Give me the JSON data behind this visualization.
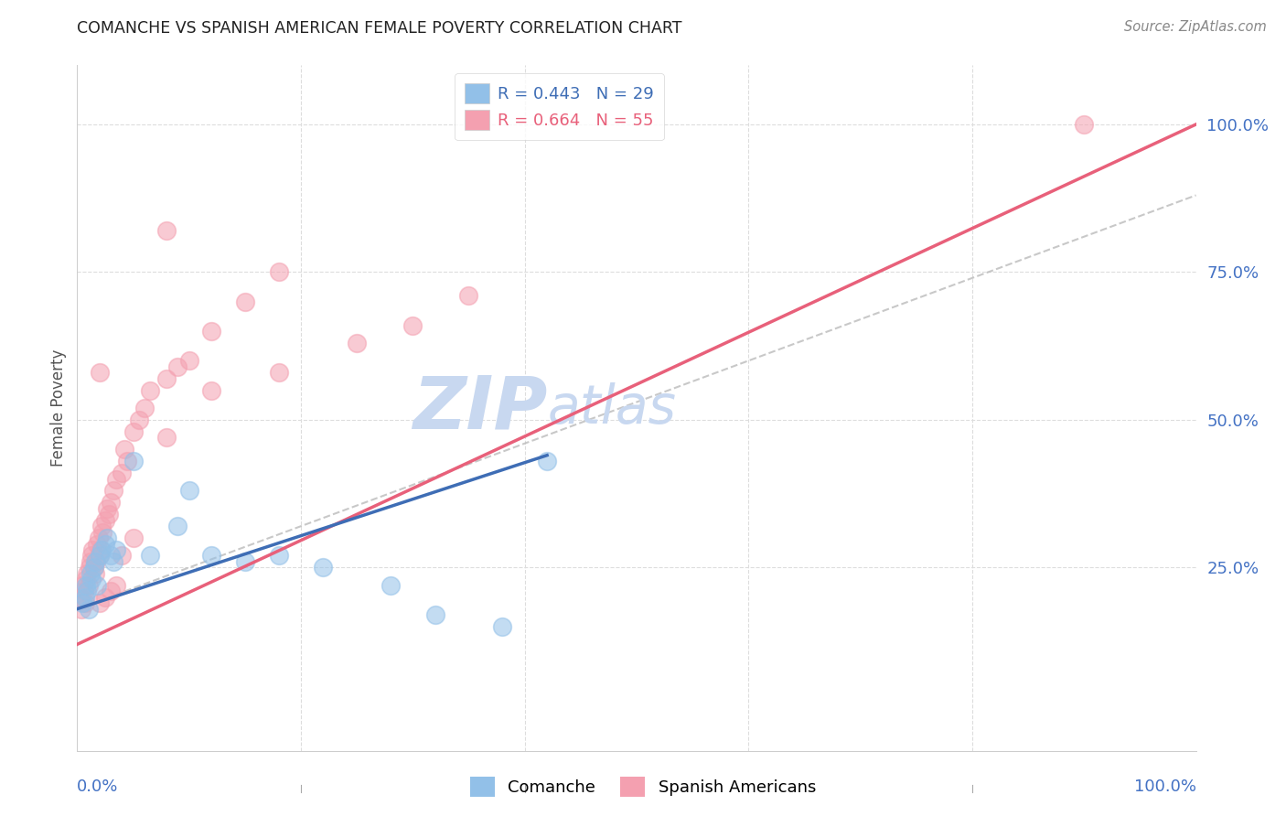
{
  "title": "COMANCHE VS SPANISH AMERICAN FEMALE POVERTY CORRELATION CHART",
  "source": "Source: ZipAtlas.com",
  "ylabel": "Female Poverty",
  "right_yticks": [
    "100.0%",
    "75.0%",
    "50.0%",
    "25.0%"
  ],
  "right_ytick_vals": [
    1.0,
    0.75,
    0.5,
    0.25
  ],
  "legend_line1": "R = 0.443   N = 29",
  "legend_line2": "R = 0.664   N = 55",
  "comanche_color": "#92C0E8",
  "spanish_color": "#F4A0B0",
  "comanche_line_color": "#3E6DB5",
  "spanish_line_color": "#E8607A",
  "dashed_line_color": "#BBBBBB",
  "watermark_zip": "ZIP",
  "watermark_atlas": "atlas",
  "watermark_color": "#C8D8F0",
  "grid_color": "#DDDDDD",
  "comanche_x": [
    0.005,
    0.007,
    0.008,
    0.009,
    0.01,
    0.012,
    0.013,
    0.015,
    0.016,
    0.018,
    0.02,
    0.022,
    0.025,
    0.027,
    0.03,
    0.032,
    0.035,
    0.05,
    0.065,
    0.09,
    0.1,
    0.12,
    0.15,
    0.18,
    0.22,
    0.28,
    0.32,
    0.38,
    0.42
  ],
  "comanche_y": [
    0.19,
    0.2,
    0.22,
    0.21,
    0.18,
    0.24,
    0.23,
    0.25,
    0.26,
    0.22,
    0.27,
    0.28,
    0.29,
    0.3,
    0.27,
    0.26,
    0.28,
    0.43,
    0.27,
    0.32,
    0.38,
    0.27,
    0.26,
    0.27,
    0.25,
    0.22,
    0.17,
    0.15,
    0.43
  ],
  "spanish_x": [
    0.003,
    0.004,
    0.005,
    0.006,
    0.007,
    0.008,
    0.009,
    0.01,
    0.011,
    0.012,
    0.013,
    0.014,
    0.015,
    0.016,
    0.017,
    0.018,
    0.019,
    0.02,
    0.021,
    0.022,
    0.023,
    0.025,
    0.027,
    0.028,
    0.03,
    0.032,
    0.035,
    0.04,
    0.042,
    0.045,
    0.05,
    0.055,
    0.06,
    0.065,
    0.08,
    0.09,
    0.1,
    0.12,
    0.15,
    0.18,
    0.02,
    0.025,
    0.03,
    0.035,
    0.04,
    0.05,
    0.08,
    0.12,
    0.18,
    0.25,
    0.3,
    0.35,
    0.9,
    0.08,
    0.02
  ],
  "spanish_y": [
    0.2,
    0.18,
    0.22,
    0.21,
    0.19,
    0.23,
    0.24,
    0.22,
    0.25,
    0.26,
    0.27,
    0.28,
    0.25,
    0.24,
    0.26,
    0.29,
    0.3,
    0.27,
    0.28,
    0.32,
    0.31,
    0.33,
    0.35,
    0.34,
    0.36,
    0.38,
    0.4,
    0.41,
    0.45,
    0.43,
    0.48,
    0.5,
    0.52,
    0.55,
    0.57,
    0.59,
    0.6,
    0.65,
    0.7,
    0.75,
    0.19,
    0.2,
    0.21,
    0.22,
    0.27,
    0.3,
    0.47,
    0.55,
    0.58,
    0.63,
    0.66,
    0.71,
    1.0,
    0.82,
    0.58
  ],
  "xlim": [
    0.0,
    1.0
  ],
  "ylim": [
    -0.06,
    1.1
  ],
  "pink_line_x0": 0.0,
  "pink_line_y0": 0.12,
  "pink_line_x1": 1.0,
  "pink_line_y1": 1.0,
  "blue_line_x0": 0.0,
  "blue_line_y0": 0.18,
  "blue_line_x1": 0.42,
  "blue_line_y1": 0.44,
  "dash_line_x0": 0.0,
  "dash_line_y0": 0.18,
  "dash_line_x1": 1.0,
  "dash_line_y1": 0.88
}
